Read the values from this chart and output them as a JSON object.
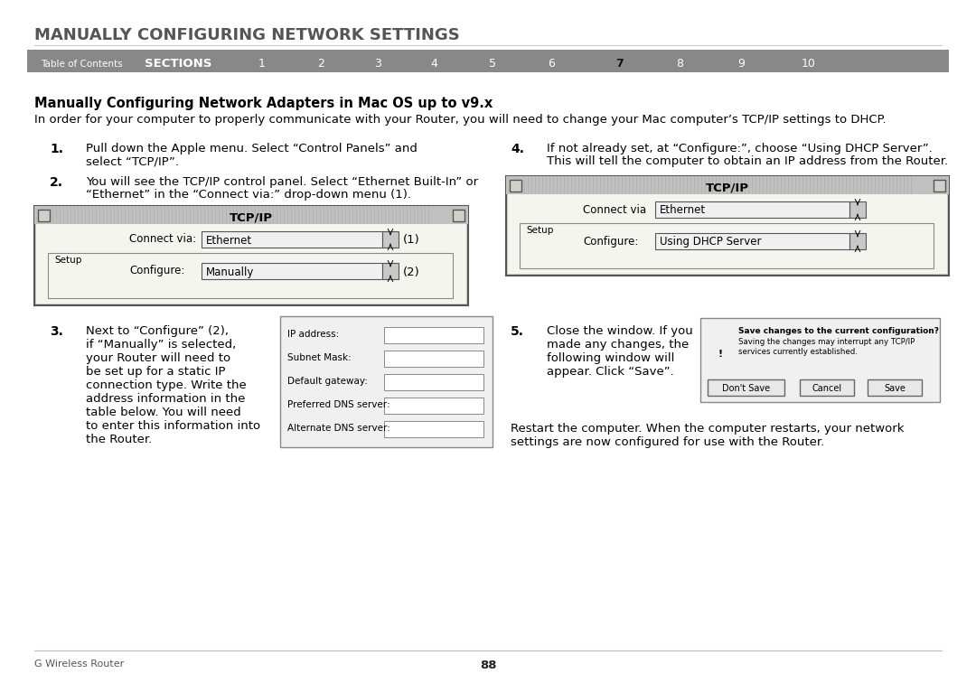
{
  "title": "MANUALLY CONFIGURING NETWORK SETTINGS",
  "nav_bg": "#888888",
  "nav_label": "Table of Contents",
  "nav_sections": "SECTIONS",
  "nav_numbers": [
    "1",
    "2",
    "3",
    "4",
    "5",
    "6",
    "7",
    "8",
    "9",
    "10"
  ],
  "nav_active": "7",
  "section_heading": "Manually Configuring Network Adapters in Mac OS up to v9.x",
  "intro_text": "In order for your computer to properly communicate with your Router, you will need to change your Mac computer’s TCP/IP settings to DHCP.",
  "step1_num": "1.",
  "step1_text": "Pull down the Apple menu. Select “Control Panels” and\nselect “TCP/IP”.",
  "step2_num": "2.",
  "step2_text": "You will see the TCP/IP control panel. Select “Ethernet Built-In” or\n“Ethernet” in the “Connect via:” drop-down menu (1).",
  "step3_num": "3.",
  "step3_text": "Next to “Configure” (2),\nif “Manually” is selected,\nyour Router will need to\nbe set up for a static IP\nconnection type. Write the\naddress information in the\ntable below. You will need\nto enter this information into\nthe Router.",
  "step4_num": "4.",
  "step4_text": "If not already set, at “Configure:”, choose “Using DHCP Server”.\nThis will tell the computer to obtain an IP address from the Router.",
  "step5_num": "5.",
  "step5_text": "Close the window. If you\nmade any changes, the\nfollowing window will\nappear. Click “Save”.",
  "restart_text": "Restart the computer. When the computer restarts, your network\nsettings are now configured for use with the Router.",
  "footer_left": "G Wireless Router",
  "footer_page": "88",
  "bg_color": "#ffffff",
  "title_color": "#555555",
  "text_color": "#000000"
}
